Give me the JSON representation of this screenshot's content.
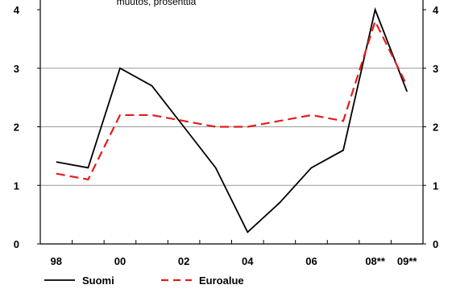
{
  "chart_data": {
    "type": "line",
    "subtitle": "muutos, prosenttia",
    "x": [
      "98",
      "99",
      "00",
      "01",
      "02",
      "03",
      "04",
      "05",
      "06",
      "07",
      "08**",
      "09**"
    ],
    "x_tick_labels": [
      "98",
      "00",
      "02",
      "04",
      "06",
      "08**",
      "09**"
    ],
    "ylim": [
      0,
      4
    ],
    "y_ticks": [
      "0",
      "1",
      "2",
      "3",
      "4"
    ],
    "grid": true,
    "legend_position": "bottom-left",
    "series": [
      {
        "name": "Suomi",
        "color": "#000000",
        "style": "solid",
        "values": [
          1.4,
          1.3,
          3.0,
          2.7,
          2.0,
          1.3,
          0.2,
          0.7,
          1.3,
          1.6,
          4.0,
          2.6
        ]
      },
      {
        "name": "Euroalue",
        "color": "#e41c1c",
        "style": "dashed",
        "values": [
          1.2,
          1.1,
          2.2,
          2.2,
          2.1,
          2.0,
          2.0,
          2.1,
          2.2,
          2.1,
          3.8,
          2.7
        ]
      }
    ]
  }
}
